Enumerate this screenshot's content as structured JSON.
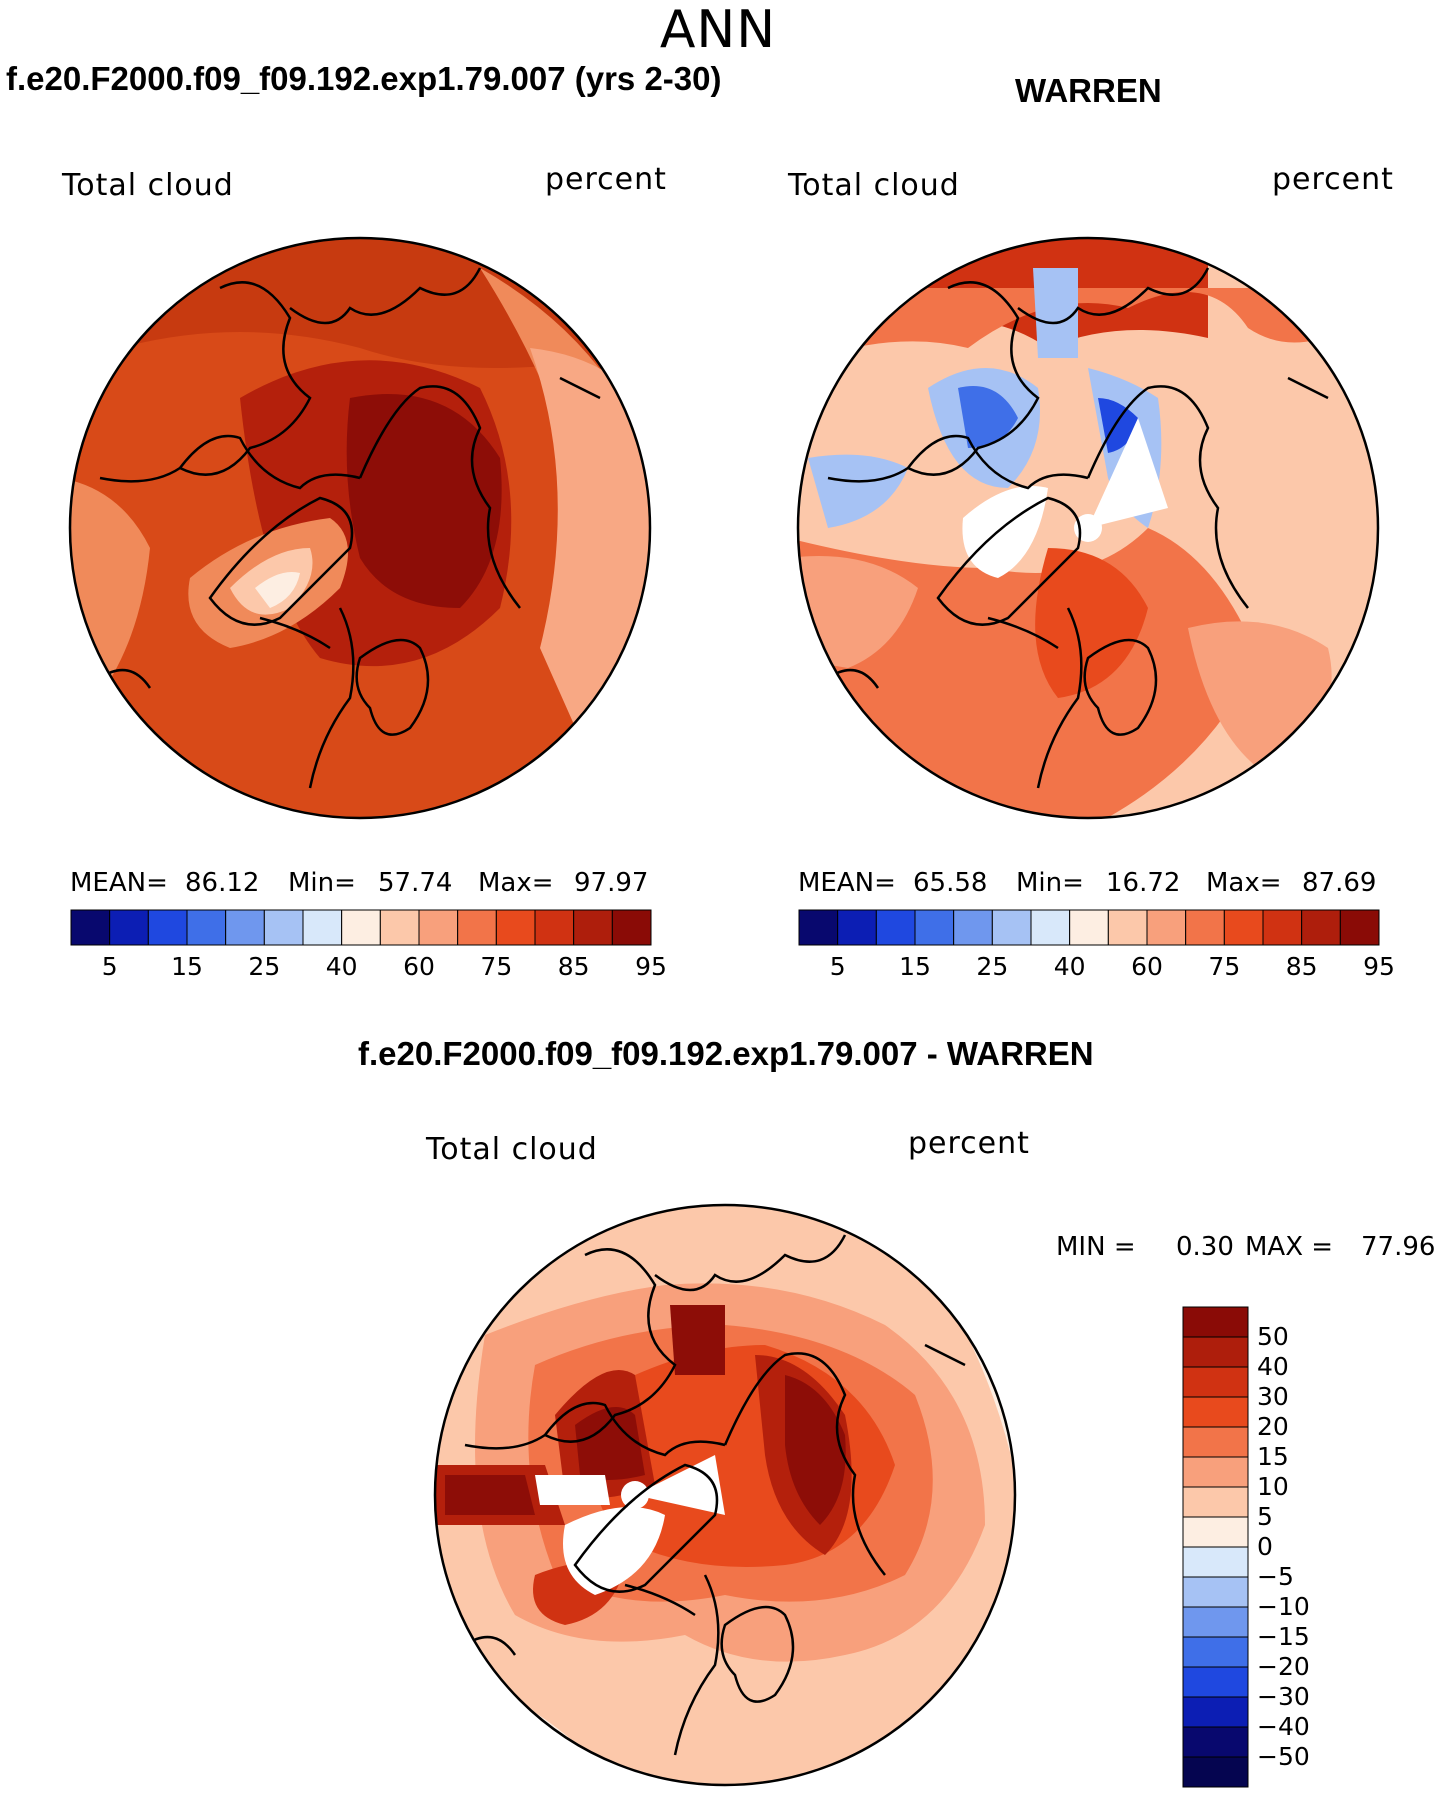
{
  "page_title": "ANN",
  "panels": [
    {
      "title": "f.e20.F2000.f09_f09.192.exp1.79.007 (yrs 2-30)",
      "left_label": "Total cloud",
      "right_label": "percent",
      "stats": {
        "mean_label": "MEAN=",
        "mean": "86.12",
        "min_label": "Min=",
        "min": "57.74",
        "max_label": "Max=",
        "max": "97.97"
      }
    },
    {
      "title": "WARREN",
      "left_label": "Total cloud",
      "right_label": "percent",
      "stats": {
        "mean_label": "MEAN=",
        "mean": "65.58",
        "min_label": "Min=",
        "min": "16.72",
        "max_label": "Max=",
        "max": "87.69"
      }
    }
  ],
  "diff_panel": {
    "title": "f.e20.F2000.f09_f09.192.exp1.79.007 - WARREN",
    "left_label": "Total cloud",
    "right_label": "percent",
    "min_label": "MIN =",
    "min": "0.30",
    "max_label": "MAX =",
    "max": "77.96"
  },
  "abs_colorbar": {
    "tick_labels": [
      "5",
      "15",
      "25",
      "40",
      "60",
      "75",
      "85",
      "95"
    ],
    "colors": [
      "#08086e",
      "#0c1eb4",
      "#1f48e0",
      "#3f6fe8",
      "#6f97ee",
      "#a6c2f4",
      "#d8e8fa",
      "#fdeee2",
      "#fcc8aa",
      "#f8a07c",
      "#f27449",
      "#e84a1d",
      "#d03212",
      "#ae1e0c",
      "#8a0b06"
    ]
  },
  "diff_colorbar": {
    "tick_labels": [
      "50",
      "40",
      "30",
      "20",
      "15",
      "10",
      "5",
      "0",
      "−5",
      "−10",
      "−15",
      "−20",
      "−30",
      "−40",
      "−50"
    ],
    "colors": [
      "#8a0b06",
      "#ae1e0c",
      "#d03212",
      "#e84a1d",
      "#f27449",
      "#f8a07c",
      "#fcc8aa",
      "#fdeee2",
      "#d8e8fa",
      "#a6c2f4",
      "#6f97ee",
      "#3f6fe8",
      "#1f48e0",
      "#0c1eb4",
      "#08086e",
      "#050550"
    ]
  }
}
